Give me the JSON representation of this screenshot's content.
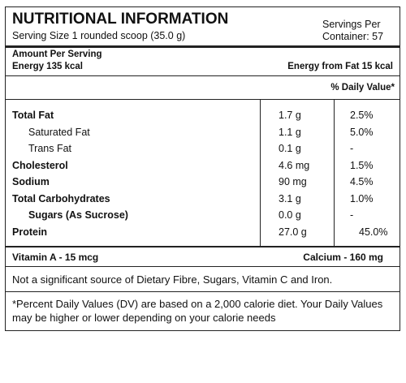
{
  "header": {
    "title": "NUTRITIONAL INFORMATION",
    "serving_size": "Serving Size 1 rounded scoop (35.0 g)",
    "servings": [
      "Servings Per",
      "Container: 57"
    ]
  },
  "amount": {
    "label": "Amount Per Serving",
    "energy": "Energy 135 kcal",
    "energy_from_fat": "Energy from Fat 15 kcal"
  },
  "dv_header": "% Daily Value*",
  "table": {
    "rows": [
      [
        "Total Fat",
        "1.7 g",
        "2.5%"
      ],
      [
        "Saturated Fat",
        "1.1 g",
        "5.0%"
      ],
      [
        "Trans Fat",
        "0.1 g",
        "-"
      ],
      [
        "Cholesterol",
        "4.6 mg",
        "1.5%"
      ],
      [
        "Sodium",
        "90 mg",
        "4.5%"
      ],
      [
        "Total Carbohydrates",
        "3.1 g",
        "1.0%"
      ],
      [
        "Sugars (As Sucrose)",
        "0.0 g",
        "-"
      ],
      [
        "Protein",
        "27.0 g",
        "45.0%"
      ]
    ]
  },
  "vitamins": {
    "left": "Vitamin A - 15 mcg",
    "right": "Calcium - 160 mg"
  },
  "note": "Not a significant source of Dietary Fibre, Sugars, Vitamin C and Iron.",
  "footnote": "*Percent Daily Values (DV) are based on a 2,000 calorie diet. Your Daily Values may be higher or lower depending on your calorie needs"
}
